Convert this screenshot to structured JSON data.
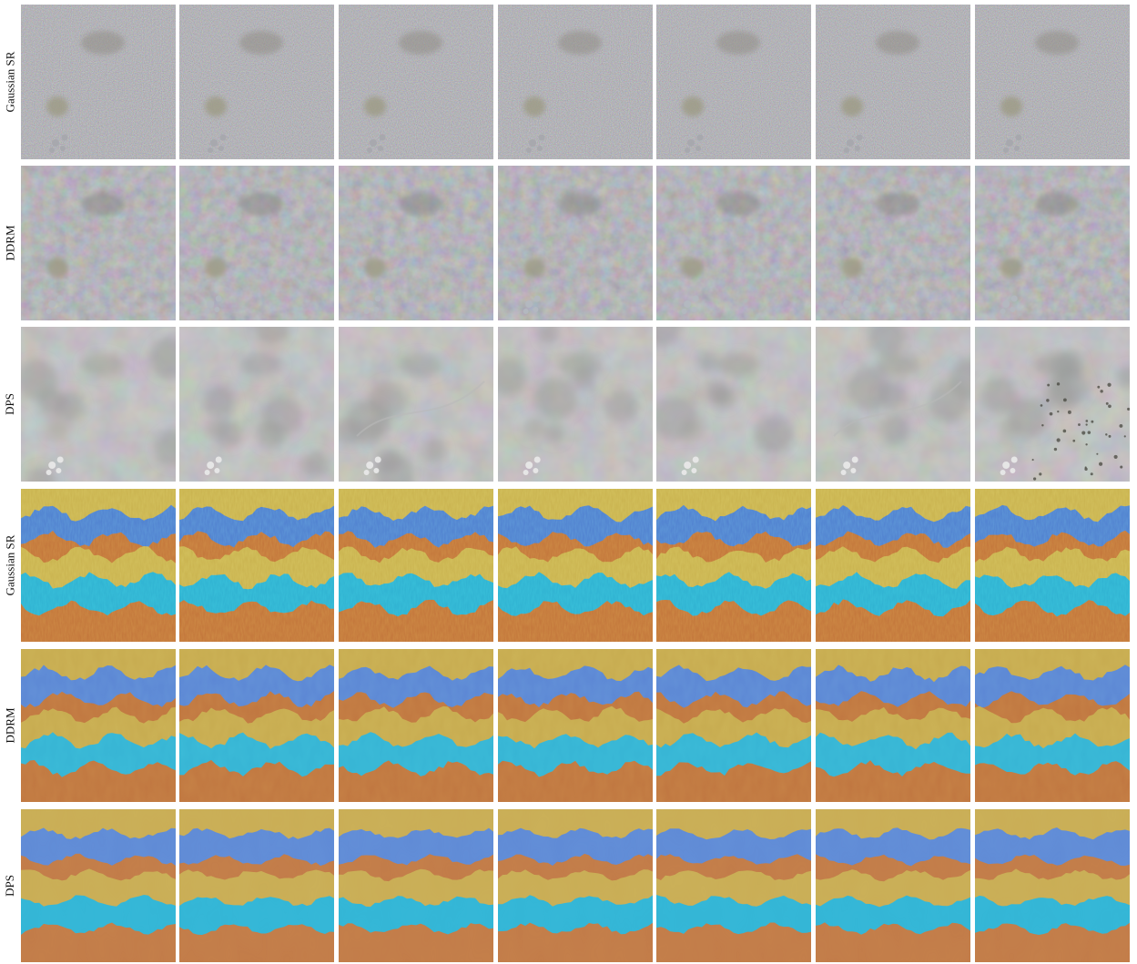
{
  "figure": {
    "background": "#ffffff",
    "row_labels": [
      "Gaussian SR",
      "DDRM",
      "DPS",
      "Gaussian SR",
      "DDRM",
      "DPS"
    ],
    "columns_per_row": 7,
    "rows": [
      {
        "label": "Gaussian SR",
        "subject": "gray-texture",
        "style": "noisy",
        "palette": [
          "#6b6a66",
          "#8d8a82",
          "#4d4c4a",
          "#a6a8ad"
        ]
      },
      {
        "label": "DDRM",
        "subject": "gray-texture",
        "style": "smooth-blobs",
        "palette": [
          "#6e6e6b",
          "#878683",
          "#555553",
          "#b3b8c0"
        ]
      },
      {
        "label": "DPS",
        "subject": "gray-texture",
        "style": "blurry",
        "palette": [
          "#858585",
          "#9a9a9a",
          "#737373",
          "#e8e8e8"
        ]
      },
      {
        "label": "Gaussian SR",
        "subject": "striped-fabric",
        "style": "noisy",
        "palette": [
          "#c9b24e",
          "#4f7fcf",
          "#c2743a",
          "#2fb1d1"
        ]
      },
      {
        "label": "DDRM",
        "subject": "striped-fabric",
        "style": "smooth",
        "palette": [
          "#c7ab4f",
          "#5b86d4",
          "#c07640",
          "#36b4d4"
        ]
      },
      {
        "label": "DPS",
        "subject": "striped-fabric",
        "style": "clean",
        "palette": [
          "#c9ad55",
          "#5f8ad6",
          "#c27b48",
          "#33b5d6"
        ]
      }
    ]
  }
}
